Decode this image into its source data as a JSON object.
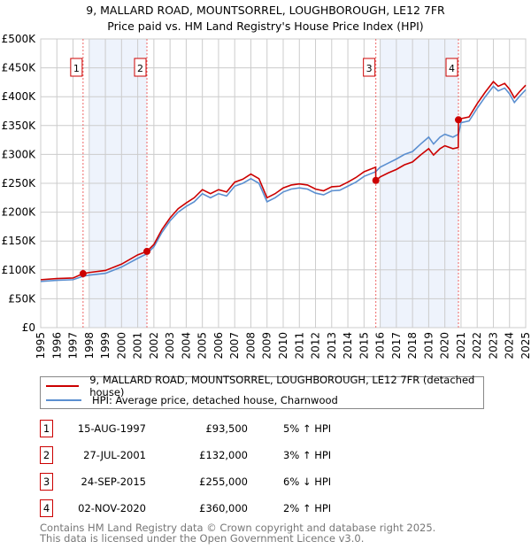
{
  "title": "9, MALLARD ROAD, MOUNTSORREL, LOUGHBOROUGH, LE12 7FR",
  "subtitle": "Price paid vs. HM Land Registry's House Price Index (HPI)",
  "chart_data": {
    "type": "line",
    "title": "9, MALLARD ROAD, MOUNTSORREL, LOUGHBOROUGH, LE12 7FR — Price paid vs. HM Land Registry's House Price Index (HPI)",
    "xlim": [
      1995,
      2025
    ],
    "ylim": [
      0,
      500000
    ],
    "y_ticks": [
      0,
      50000,
      100000,
      150000,
      200000,
      250000,
      300000,
      350000,
      400000,
      450000,
      500000
    ],
    "y_tick_labels": [
      "£0",
      "£50K",
      "£100K",
      "£150K",
      "£200K",
      "£250K",
      "£300K",
      "£350K",
      "£400K",
      "£450K",
      "£500K"
    ],
    "x_tick_labels": [
      "1995",
      "1996",
      "1997",
      "1998",
      "1999",
      "2000",
      "2001",
      "2002",
      "2003",
      "2004",
      "2005",
      "2006",
      "2007",
      "2008",
      "2009",
      "2010",
      "2011",
      "2012",
      "2013",
      "2014",
      "2015",
      "2016",
      "2017",
      "2018",
      "2019",
      "2020",
      "2021",
      "2022",
      "2023",
      "2024",
      "2025"
    ],
    "grid": true,
    "legend_placement": "below",
    "shaded_ranges": [
      [
        1998,
        2001.57
      ],
      [
        2016,
        2020.84
      ]
    ],
    "series": [
      {
        "name": "9, MALLARD ROAD, MOUNTSORREL, LOUGHBOROUGH, LE12 7FR (detached house)",
        "color": "#cc0000",
        "x": [
          1995,
          1996,
          1997,
          1997.62,
          1998,
          1999,
          2000,
          2001,
          2001.57,
          2002,
          2002.5,
          2003,
          2003.5,
          2004,
          2004.5,
          2005,
          2005.5,
          2006,
          2006.5,
          2007,
          2007.5,
          2008,
          2008.5,
          2009,
          2009.5,
          2010,
          2010.5,
          2011,
          2011.5,
          2012,
          2012.5,
          2013,
          2013.5,
          2014,
          2014.5,
          2015,
          2015.72,
          2015.73,
          2016,
          2016.5,
          2017,
          2017.5,
          2018,
          2018.5,
          2019,
          2019.3,
          2019.7,
          2020,
          2020.5,
          2020.83,
          2020.84,
          2021,
          2021.5,
          2022,
          2022.5,
          2023,
          2023.3,
          2023.7,
          2024,
          2024.3,
          2024.6,
          2025
        ],
        "values": [
          83000,
          85000,
          86000,
          93500,
          95500,
          99000,
          110000,
          126000,
          132000,
          144000,
          170000,
          190000,
          206000,
          216000,
          225000,
          239000,
          232000,
          239000,
          235000,
          252000,
          257000,
          266000,
          258000,
          225000,
          232000,
          242000,
          247000,
          249000,
          247000,
          240000,
          237000,
          244000,
          245000,
          252000,
          260000,
          270000,
          278000,
          255000,
          261000,
          268000,
          274000,
          282000,
          287000,
          299000,
          310000,
          299000,
          310000,
          315000,
          310000,
          312000,
          360000,
          362000,
          365000,
          388000,
          408000,
          426000,
          418000,
          423000,
          413000,
          398000,
          408000,
          420000
        ]
      },
      {
        "name": "HPI: Average price, detached house, Charnwood",
        "color": "#5b8fd0",
        "x": [
          1995,
          1996,
          1997,
          1997.62,
          1998,
          1999,
          2000,
          2001,
          2001.57,
          2002,
          2002.5,
          2003,
          2003.5,
          2004,
          2004.5,
          2005,
          2005.5,
          2006,
          2006.5,
          2007,
          2007.5,
          2008,
          2008.5,
          2009,
          2009.5,
          2010,
          2010.5,
          2011,
          2011.5,
          2012,
          2012.5,
          2013,
          2013.5,
          2014,
          2014.5,
          2015,
          2015.72,
          2016,
          2016.5,
          2017,
          2017.5,
          2018,
          2018.5,
          2019,
          2019.3,
          2019.7,
          2020,
          2020.5,
          2020.84,
          2021,
          2021.5,
          2022,
          2022.5,
          2023,
          2023.3,
          2023.7,
          2024,
          2024.3,
          2024.6,
          2025
        ],
        "values": [
          80000,
          82000,
          83000,
          89000,
          91000,
          94000,
          105000,
          120000,
          128000,
          140000,
          165000,
          185000,
          200000,
          210000,
          218000,
          232000,
          225000,
          232000,
          228000,
          245000,
          250000,
          258000,
          250000,
          218000,
          225000,
          235000,
          240000,
          242000,
          240000,
          233000,
          230000,
          237000,
          238000,
          245000,
          252000,
          262000,
          270000,
          278000,
          285000,
          292000,
          300000,
          305000,
          318000,
          330000,
          318000,
          330000,
          335000,
          330000,
          335000,
          355000,
          358000,
          380000,
          400000,
          418000,
          410000,
          415000,
          405000,
          390000,
          400000,
          412000
        ]
      }
    ],
    "sales": [
      {
        "label": "1",
        "date": "15-AUG-1997",
        "x": 1997.62,
        "price": 93500,
        "price_text": "£93,500",
        "hpi_text": "5% ↑ HPI"
      },
      {
        "label": "2",
        "date": "27-JUL-2001",
        "x": 2001.57,
        "price": 132000,
        "price_text": "£132,000",
        "hpi_text": "3% ↑ HPI"
      },
      {
        "label": "3",
        "date": "24-SEP-2015",
        "x": 2015.73,
        "price": 255000,
        "price_text": "£255,000",
        "hpi_text": "6% ↓ HPI"
      },
      {
        "label": "4",
        "date": "02-NOV-2020",
        "x": 2020.84,
        "price": 360000,
        "price_text": "£360,000",
        "hpi_text": "2% ↑ HPI"
      }
    ]
  },
  "legend": {
    "property": "9, MALLARD ROAD, MOUNTSORREL, LOUGHBOROUGH, LE12 7FR (detached house)",
    "hpi": "HPI: Average price, detached house, Charnwood"
  },
  "footer": {
    "line1": "Contains HM Land Registry data © Crown copyright and database right 2025.",
    "line2": "This data is licensed under the Open Government Licence v3.0."
  }
}
